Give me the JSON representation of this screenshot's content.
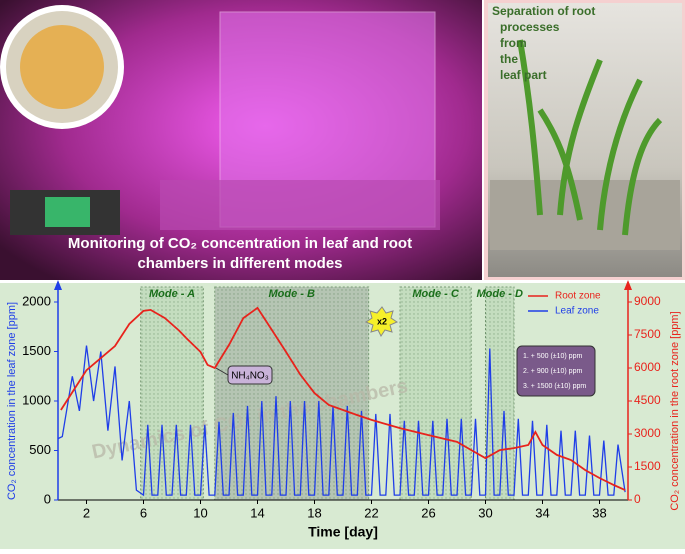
{
  "photo_captions": {
    "left": "Monitoring of CO₂ concentration in leaf and root chambers in different modes",
    "right": "Separation of root processes from the leaf part"
  },
  "chart_data": {
    "type": "line",
    "x_label": "Time [day]",
    "y_label": "CO₂ concentration in the leaf zone [ppm]",
    "y2_label": "CO₂ concentration in the root zone [ppm]",
    "watermark": "Dynamics of CO₂ in the chambers",
    "xlim": [
      0,
      40
    ],
    "xticks": [
      2,
      6,
      10,
      14,
      18,
      22,
      26,
      30,
      34,
      38
    ],
    "ylim": [
      0,
      2000
    ],
    "yticks": [
      0,
      500,
      1000,
      1500,
      2000
    ],
    "y2lim": [
      0,
      9000
    ],
    "y2ticks": [
      0,
      1500,
      3000,
      4500,
      6000,
      7500,
      9000
    ],
    "legend": "upper right",
    "modes": [
      {
        "label": "Mode - A",
        "start": 5.8,
        "end": 10.2
      },
      {
        "label": "Mode - B",
        "start": 11,
        "end": 21.8
      },
      {
        "label": "Mode - C",
        "start": 24,
        "end": 29
      },
      {
        "label": "Mode - D",
        "start": 30,
        "end": 32
      }
    ],
    "annotations": [
      "NH₄NO₃",
      "x2",
      "1. + 500 (±10) ppm",
      "2. + 900 (±10) ppm",
      "3. + 1500 (±10) ppm"
    ],
    "series": [
      {
        "name": "Root zone",
        "color": "#e8231c",
        "axis": "y2",
        "x": [
          0.2,
          2,
          4,
          5,
          6,
          6.5,
          7.5,
          8.5,
          9,
          10,
          10.5,
          11,
          12,
          13,
          14,
          15,
          16,
          17,
          18,
          19,
          20,
          21,
          22,
          24,
          26,
          28,
          29,
          30,
          31,
          32,
          33,
          33.5,
          34,
          35,
          36,
          37,
          38,
          39,
          39.8
        ],
        "values": [
          4090,
          5900,
          7000,
          8000,
          8600,
          8640,
          8270,
          7700,
          7360,
          6730,
          6140,
          6000,
          7050,
          8270,
          8730,
          7730,
          6730,
          5700,
          4860,
          4320,
          4090,
          3860,
          3640,
          3270,
          2950,
          2640,
          2270,
          1900,
          2270,
          2360,
          2500,
          3090,
          2500,
          2050,
          1820,
          1360,
          1000,
          680,
          450
        ]
      },
      {
        "name": "Leaf zone",
        "color": "#1f3ee8",
        "x": [
          0,
          0.3,
          1,
          1.5,
          2,
          2.5,
          3,
          3.5,
          4,
          4.5,
          5,
          5.5,
          6,
          6.3,
          6.6,
          7,
          7.3,
          7.6,
          8,
          8.3,
          8.6,
          9,
          9.3,
          9.6,
          10,
          10.3,
          10.6,
          11,
          11.3,
          11.6,
          12,
          12.3,
          12.6,
          13,
          13.3,
          13.6,
          14,
          14.3,
          14.6,
          15,
          15.3,
          15.6,
          16,
          16.3,
          16.6,
          17,
          17.3,
          17.6,
          18,
          18.3,
          18.6,
          19,
          19.3,
          19.6,
          20,
          20.3,
          20.6,
          21,
          21.3,
          21.6,
          22,
          22.3,
          22.6,
          23,
          23.3,
          23.6,
          24,
          24.3,
          24.6,
          25,
          25.3,
          25.6,
          26,
          26.3,
          26.6,
          27,
          27.3,
          27.6,
          28,
          28.3,
          28.6,
          29,
          29.3,
          29.6,
          30,
          30.3,
          30.6,
          31,
          31.3,
          31.6,
          32,
          32.3,
          32.6,
          33,
          33.3,
          33.6,
          34,
          34.3,
          34.6,
          35,
          35.3,
          35.6,
          36,
          36.3,
          36.6,
          37,
          37.3,
          37.6,
          38,
          38.3,
          38.6,
          39,
          39.3,
          39.8
        ],
        "values": [
          620,
          640,
          1250,
          900,
          1560,
          1000,
          1500,
          700,
          1350,
          400,
          1000,
          100,
          50,
          760,
          50,
          50,
          760,
          50,
          50,
          760,
          50,
          50,
          760,
          50,
          50,
          760,
          50,
          50,
          790,
          50,
          50,
          880,
          50,
          50,
          950,
          50,
          50,
          1000,
          50,
          50,
          1050,
          50,
          50,
          1000,
          50,
          50,
          1000,
          50,
          50,
          1000,
          50,
          50,
          950,
          50,
          50,
          950,
          50,
          50,
          900,
          50,
          50,
          870,
          50,
          50,
          870,
          50,
          50,
          800,
          50,
          50,
          800,
          50,
          50,
          800,
          50,
          50,
          820,
          50,
          50,
          820,
          50,
          50,
          820,
          50,
          50,
          1530,
          50,
          50,
          900,
          50,
          50,
          820,
          50,
          50,
          800,
          50,
          50,
          760,
          50,
          50,
          700,
          50,
          50,
          700,
          50,
          50,
          650,
          50,
          50,
          600,
          50,
          50,
          560,
          80
        ]
      }
    ]
  }
}
